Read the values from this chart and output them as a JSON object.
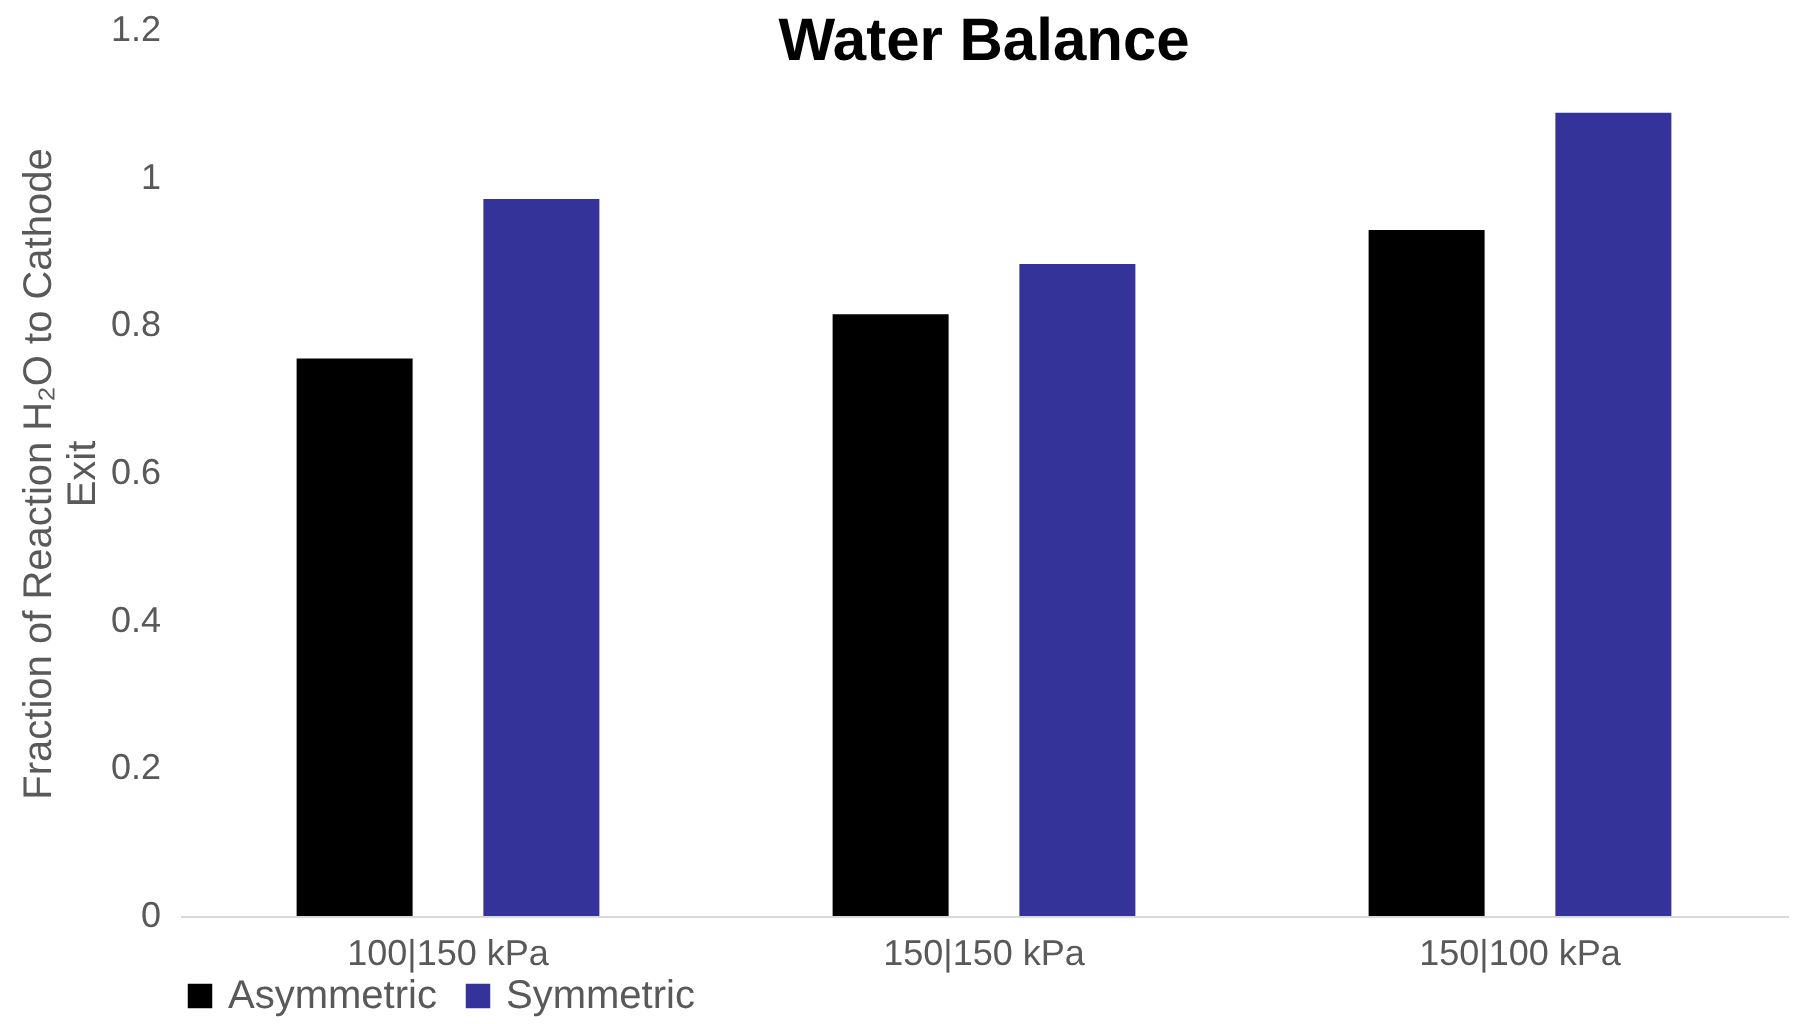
{
  "chart_data": {
    "type": "bar",
    "title": "Water Balance",
    "ylabel": "Fraction of Reaction H₂O to Cathode Exit",
    "categories": [
      "100|150 kPa",
      "150|150 kPa",
      "150|100 kPa"
    ],
    "series": [
      {
        "name": "Asymmetric",
        "color": "#000000",
        "values": [
          0.755,
          0.815,
          0.929
        ]
      },
      {
        "name": "Symmetric",
        "color": "#333399",
        "values": [
          0.971,
          0.883,
          1.088
        ]
      }
    ],
    "ylim": [
      0,
      1.2
    ],
    "yticks": [
      0,
      0.2,
      0.4,
      0.6,
      0.8,
      1,
      1.2
    ],
    "grid": false,
    "legend": "bottom"
  }
}
